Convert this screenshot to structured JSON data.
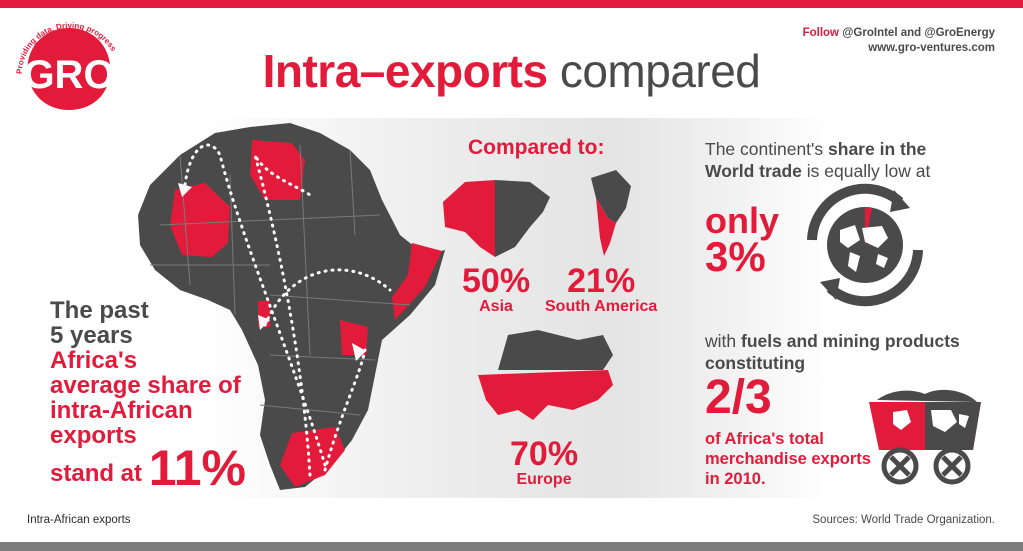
{
  "logo": {
    "letters": "GRO",
    "tagline": "Providing data. Driving progress"
  },
  "title": {
    "red": "Intra–exports",
    "grey": "compared"
  },
  "follow": {
    "prefix": "Follow",
    "handles": "@GroIntel and @GroEnergy",
    "website": "www.gro-ventures.com"
  },
  "left_text": {
    "line1": "The past",
    "line2": "5 years",
    "line3": "Africa's",
    "line4": "average share of",
    "line5": "intra-African",
    "line6": "exports",
    "line7": "stand at",
    "value": "11%"
  },
  "compared": {
    "heading": "Compared to:",
    "regions": [
      {
        "value": "50%",
        "label": "Asia"
      },
      {
        "value": "21%",
        "label": "South America"
      },
      {
        "value": "70%",
        "label": "Europe"
      }
    ]
  },
  "world_share": {
    "text_pre": "The continent's",
    "text_bold": "share in the World trade",
    "text_post": "is equally low at",
    "only": "only",
    "value": "3%"
  },
  "fuels": {
    "text_pre": "with",
    "text_bold": "fuels and mining products constituting",
    "value": "2/3",
    "tail": "of Africa's total merchandise exports in 2010."
  },
  "footer": {
    "left": "Intra-African exports",
    "right": "Sources: World Trade Organization."
  },
  "colors": {
    "accent": "#e31b3b",
    "dark": "#4a4a4b",
    "bar": "#7d7d7d"
  },
  "icons": [
    "gro-logo",
    "africa-map-icon",
    "asia-map-icon",
    "south-america-map-icon",
    "europe-map-icon",
    "globe-arrows-icon",
    "mining-cart-icon"
  ]
}
